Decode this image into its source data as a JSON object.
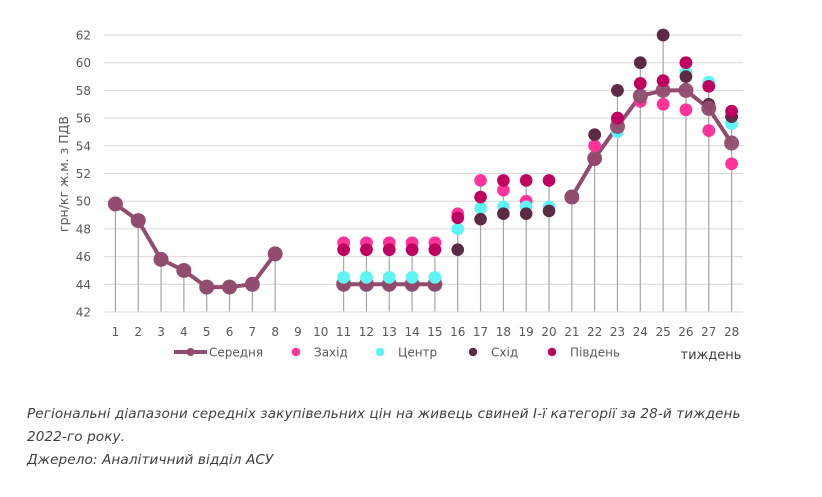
{
  "chart_data": {
    "type": "line",
    "title": "",
    "xlabel": "тиждень",
    "ylabel": "грн/кг ж.м. з ПДВ",
    "ylim": [
      42,
      62
    ],
    "yticks": [
      42,
      44,
      46,
      48,
      50,
      52,
      54,
      56,
      58,
      60,
      62
    ],
    "x": [
      1,
      2,
      3,
      4,
      5,
      6,
      7,
      8,
      9,
      10,
      11,
      12,
      13,
      14,
      15,
      16,
      17,
      18,
      19,
      20,
      21,
      22,
      23,
      24,
      25,
      26,
      27,
      28
    ],
    "grid": "horizontal",
    "legend_position": "bottom",
    "series": [
      {
        "name": "Середня",
        "kind": "line-markers",
        "color": "#914C6E",
        "values": [
          49.8,
          48.6,
          45.8,
          45.0,
          43.8,
          43.8,
          44.0,
          46.2,
          null,
          null,
          44.0,
          44.0,
          44.0,
          44.0,
          44.0,
          null,
          null,
          null,
          null,
          null,
          50.3,
          53.1,
          55.4,
          57.6,
          58.0,
          58.0,
          56.7,
          54.2
        ]
      },
      {
        "name": "Захід",
        "kind": "markers",
        "color": "#FF3399",
        "values": [
          null,
          null,
          null,
          null,
          null,
          null,
          null,
          null,
          null,
          null,
          47.0,
          47.0,
          47.0,
          47.0,
          47.0,
          49.1,
          51.5,
          50.8,
          50.0,
          null,
          null,
          54.0,
          55.8,
          57.2,
          57.0,
          56.6,
          55.1,
          52.7
        ]
      },
      {
        "name": "Центр",
        "kind": "markers",
        "color": "#5FF5F5",
        "values": [
          null,
          null,
          null,
          null,
          null,
          null,
          null,
          null,
          null,
          null,
          44.5,
          44.5,
          44.5,
          44.5,
          44.5,
          48.0,
          49.5,
          49.6,
          49.6,
          49.6,
          null,
          null,
          55.0,
          57.7,
          null,
          59.3,
          58.6,
          55.6
        ]
      },
      {
        "name": "Схід",
        "kind": "markers",
        "color": "#5C2A42",
        "values": [
          null,
          null,
          null,
          null,
          null,
          null,
          null,
          null,
          null,
          null,
          44.0,
          44.0,
          44.0,
          44.0,
          44.0,
          46.5,
          48.7,
          49.1,
          49.1,
          49.3,
          null,
          54.8,
          58.0,
          60.0,
          62.0,
          59.0,
          57.0,
          56.1
        ]
      },
      {
        "name": "Південь",
        "kind": "markers",
        "color": "#C0005F",
        "values": [
          null,
          null,
          null,
          null,
          null,
          null,
          null,
          null,
          null,
          null,
          46.5,
          46.5,
          46.5,
          46.5,
          46.5,
          48.8,
          50.3,
          51.5,
          51.5,
          51.5,
          null,
          53.0,
          56.0,
          58.5,
          58.7,
          60.0,
          58.3,
          56.5
        ]
      }
    ]
  },
  "caption": {
    "line1": "Регіональні діапазони середніх закупівельних цін на живець свиней І-ї категорії за 28-й тиждень",
    "line2": "2022-го року.",
    "source": "Джерело: Аналітичний відділ АСУ"
  }
}
